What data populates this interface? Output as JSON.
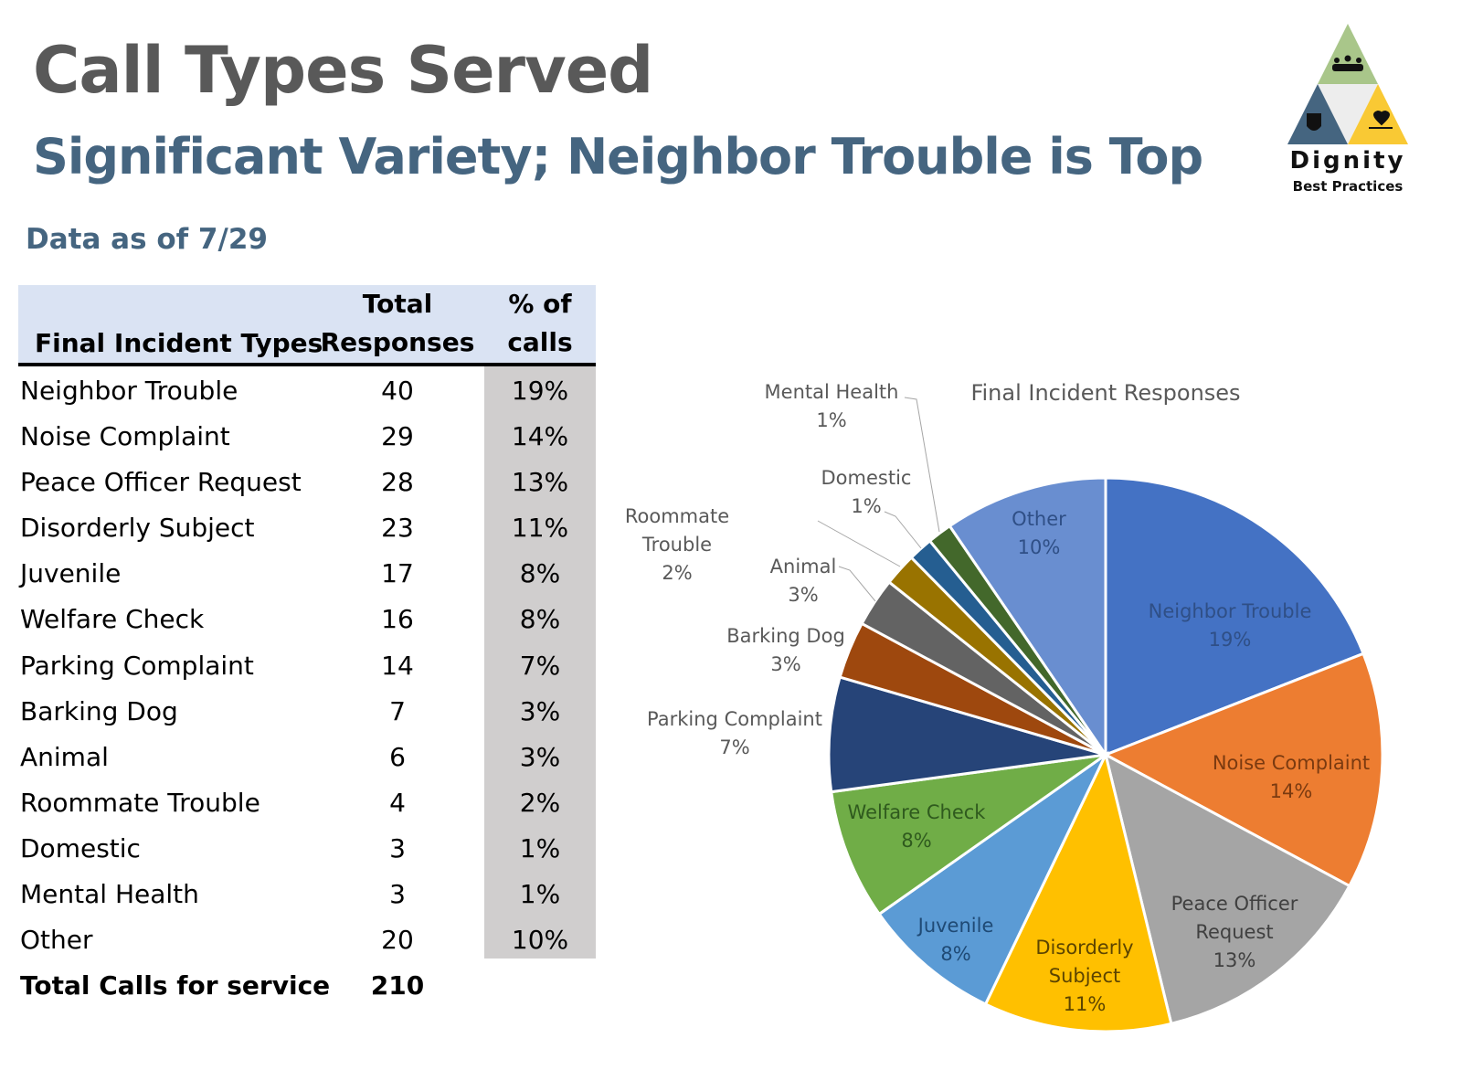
{
  "header": {
    "title": "Call Types Served",
    "subtitle": "Significant Variety; Neighbor Trouble is Top",
    "as_of": "Data as of 7/29"
  },
  "logo": {
    "name": "Dignity",
    "tagline": "Best Practices",
    "colors": [
      "#A9C68A",
      "#456580",
      "#F9C934"
    ]
  },
  "table": {
    "headers": [
      "Final Incident Types",
      "Total Responses",
      "% of calls"
    ],
    "header_lines": {
      "col2": [
        "Total",
        "Responses"
      ],
      "col3": [
        "% of",
        "calls"
      ]
    },
    "rows": [
      [
        "Neighbor Trouble",
        "40",
        "19%"
      ],
      [
        "Noise Complaint",
        "29",
        "14%"
      ],
      [
        "Peace Officer Request",
        "28",
        "13%"
      ],
      [
        "Disorderly Subject",
        "23",
        "11%"
      ],
      [
        "Juvenile",
        "17",
        "8%"
      ],
      [
        "Welfare Check",
        "16",
        "8%"
      ],
      [
        "Parking Complaint",
        "14",
        "7%"
      ],
      [
        "Barking Dog",
        "7",
        "3%"
      ],
      [
        "Animal",
        "6",
        "3%"
      ],
      [
        "Roommate Trouble",
        "4",
        "2%"
      ],
      [
        "Domestic",
        "3",
        "1%"
      ],
      [
        "Mental Health",
        "3",
        "1%"
      ],
      [
        "Other",
        "20",
        "10%"
      ]
    ],
    "total_label": "Total Calls for service",
    "total_value": "210"
  },
  "chart_data": {
    "type": "pie",
    "title": "Final Incident Responses",
    "start": "top",
    "direction": "clockwise",
    "categories": [
      "Neighbor Trouble",
      "Noise Complaint",
      "Peace Officer Request",
      "Disorderly Subject",
      "Juvenile",
      "Welfare Check",
      "Parking Complaint",
      "Barking Dog",
      "Animal",
      "Roommate Trouble",
      "Domestic",
      "Mental Health",
      "Other"
    ],
    "values": [
      40,
      29,
      28,
      23,
      17,
      16,
      14,
      7,
      6,
      4,
      3,
      3,
      20
    ],
    "labels": [
      "19%",
      "14%",
      "13%",
      "11%",
      "8%",
      "8%",
      "7%",
      "3%",
      "3%",
      "2%",
      "1%",
      "1%",
      "10%"
    ],
    "colors": [
      "#4472C4",
      "#ED7D31",
      "#A5A5A5",
      "#FFC000",
      "#5B9BD5",
      "#70AD47",
      "#264478",
      "#9E480E",
      "#636363",
      "#997300",
      "#255E91",
      "#43682B",
      "#698ED0"
    ]
  }
}
